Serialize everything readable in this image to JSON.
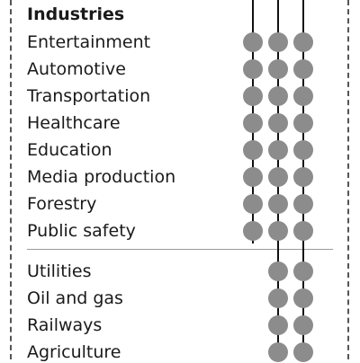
{
  "heading": "Industries",
  "colors": {
    "dot": "#8c8c8c",
    "line": "#111111",
    "separator": "#9a9a9a",
    "border": "#555555"
  },
  "group1": {
    "items": [
      {
        "label": "Entertainment",
        "dots": [
          true,
          true,
          true
        ]
      },
      {
        "label": "Automotive",
        "dots": [
          true,
          true,
          true
        ]
      },
      {
        "label": "Transportation",
        "dots": [
          true,
          true,
          true
        ]
      },
      {
        "label": "Healthcare",
        "dots": [
          true,
          true,
          true
        ]
      },
      {
        "label": "Education",
        "dots": [
          true,
          true,
          true
        ]
      },
      {
        "label": "Media production",
        "dots": [
          true,
          true,
          true
        ]
      },
      {
        "label": "Forestry",
        "dots": [
          true,
          true,
          true
        ]
      },
      {
        "label": "Public safety",
        "dots": [
          true,
          true,
          true
        ]
      }
    ]
  },
  "group2": {
    "items": [
      {
        "label": "Utilities",
        "dots": [
          false,
          true,
          true
        ]
      },
      {
        "label": "Oil and gas",
        "dots": [
          false,
          true,
          true
        ]
      },
      {
        "label": "Railways",
        "dots": [
          false,
          true,
          true
        ]
      },
      {
        "label": "Agriculture",
        "dots": [
          false,
          true,
          true
        ]
      }
    ]
  }
}
